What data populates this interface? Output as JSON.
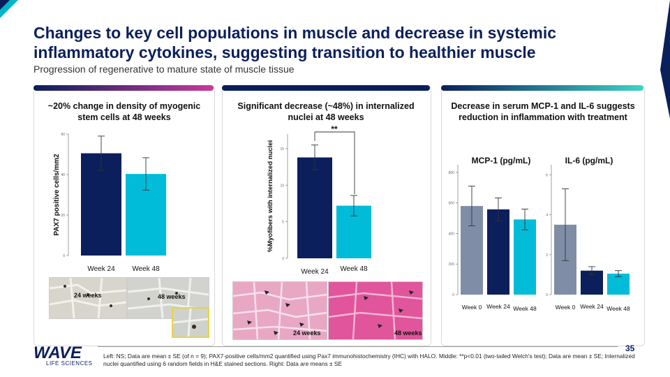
{
  "title": "Changes to key cell populations in muscle and decrease in systemic inflammatory cytokines, suggesting transition to healthier muscle",
  "subtitle": "Progression of regenerative to mature state of muscle tissue",
  "colors": {
    "navy": "#0b1f5c",
    "cyan": "#00bcd9",
    "gray": "#7f8ea6",
    "magenta": "#c73a9b",
    "teal": "#3ed4c5"
  },
  "panels": [
    {
      "heading": "~20% change in density of myogenic stem cells at 48 weeks"
    },
    {
      "heading": "Significant decrease (~48%) in internalized nuclei at 48 weeks"
    },
    {
      "heading": "Decrease in serum MCP-1 and IL-6 suggests reduction in inflammation with treatment"
    }
  ],
  "chart_data": [
    {
      "type": "bar",
      "ylabel": "PAX7 positive cells/mm2",
      "categories": [
        "Week 24",
        "Week 48"
      ],
      "values": [
        50.5,
        40.3
      ],
      "errors": [
        8.5,
        8
      ],
      "ylim": [
        0,
        60
      ],
      "ticks": [
        0,
        20,
        40,
        60
      ],
      "colors": [
        "#0b1f5c",
        "#00bcd9"
      ]
    },
    {
      "type": "bar",
      "ylabel": "%Myofibers with internalized nuclei",
      "categories": [
        "Week 24",
        "Week 48"
      ],
      "values": [
        13.8,
        7.2
      ],
      "errors": [
        1.7,
        1.4
      ],
      "ylim": [
        0,
        17
      ],
      "ticks": [
        0,
        5,
        10,
        15
      ],
      "annotation": "**",
      "colors": [
        "#0b1f5c",
        "#00bcd9"
      ]
    },
    {
      "type": "bar",
      "title": "MCP-1 (pg/mL)",
      "categories": [
        "Week 0",
        "Week 24",
        "Week 48"
      ],
      "values": [
        580,
        558,
        492
      ],
      "errors": [
        130,
        75,
        68
      ],
      "ylim": [
        0,
        850
      ],
      "ticks": [
        0,
        200,
        400,
        600,
        800
      ],
      "colors": [
        "#7f8ea6",
        "#0b1f5c",
        "#00bcd9"
      ]
    },
    {
      "type": "bar",
      "title": "IL-6 (pg/mL)",
      "categories": [
        "Week 0",
        "Week 24",
        "Week 48"
      ],
      "values": [
        3.5,
        1.2,
        1.05
      ],
      "errors": [
        1.8,
        0.2,
        0.15
      ],
      "ylim": [
        0,
        6.5
      ],
      "ticks": [
        0,
        2,
        4,
        6
      ],
      "colors": [
        "#7f8ea6",
        "#0b1f5c",
        "#00bcd9"
      ]
    }
  ],
  "images": {
    "left": [
      "24 weeks",
      "48 weeks"
    ],
    "middle": [
      "24 weeks",
      "48 weeks"
    ]
  },
  "page_number": "35",
  "logo": {
    "name": "WAVE",
    "sub": "LIFE SCIENCES"
  },
  "footnote": "Left: NS; Data are mean ± SE (of n = 9); PAX7-positive cells/mm2 quantified using Pax7 immunohistochemistry (IHC) with HALO. Middle: **p<0.01 (two-tailed Welch's test); Data are mean ± SE; Internalized nuclei quantified using 6 random fields in H&E stained sections. Right: Data are means ± SE"
}
